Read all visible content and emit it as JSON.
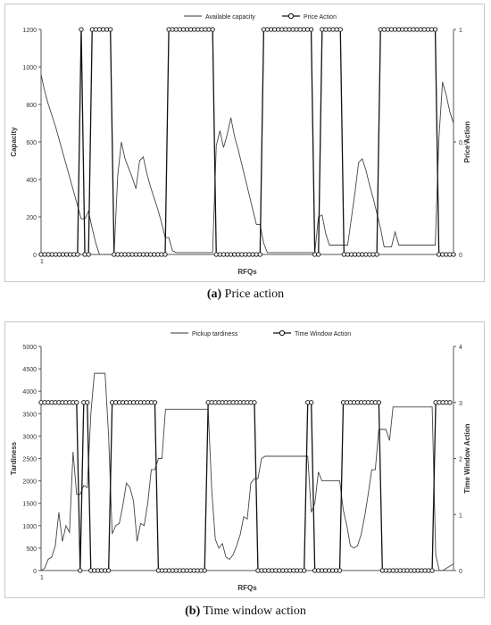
{
  "chart_data": [
    {
      "type": "line",
      "caption_letter": "(a)",
      "caption_text": "Price action",
      "xlabel": "RFQs",
      "x_first_tick": "1",
      "ylabel": "Capacity",
      "ylabel_right": "Price Action",
      "ylim": [
        0,
        1200
      ],
      "yticks": [
        "0",
        "200",
        "400",
        "600",
        "800",
        "1000",
        "1200"
      ],
      "ylim_right": [
        0,
        1
      ],
      "yticks_right": [
        "0",
        "0.5",
        "1"
      ],
      "legend_position": "top-center",
      "series": [
        {
          "name": "Available capacity",
          "axis": "left",
          "markers": false,
          "values": [
            960,
            870,
            800,
            740,
            680,
            610,
            540,
            470,
            400,
            330,
            260,
            190,
            190,
            230,
            140,
            60,
            0,
            0,
            0,
            0,
            0,
            420,
            600,
            510,
            460,
            410,
            350,
            500,
            520,
            430,
            360,
            300,
            240,
            170,
            90,
            90,
            20,
            10,
            10,
            10,
            10,
            10,
            10,
            10,
            10,
            10,
            10,
            10,
            580,
            660,
            570,
            640,
            730,
            630,
            560,
            480,
            400,
            320,
            240,
            160,
            160,
            60,
            10,
            10,
            10,
            10,
            10,
            10,
            10,
            10,
            10,
            10,
            10,
            10,
            10,
            10,
            200,
            210,
            110,
            50,
            50,
            50,
            50,
            50,
            50,
            190,
            330,
            490,
            510,
            450,
            370,
            300,
            220,
            140,
            40,
            40,
            40,
            120,
            50,
            50,
            50,
            50,
            50,
            50,
            50,
            50,
            50,
            50,
            50,
            620,
            920,
            850,
            760,
            700
          ]
        },
        {
          "name": "Price Action",
          "axis": "right",
          "markers": true,
          "values": [
            0,
            0,
            0,
            0,
            0,
            0,
            0,
            0,
            0,
            0,
            0,
            1,
            0,
            0,
            1,
            1,
            1,
            1,
            1,
            1,
            0,
            0,
            0,
            0,
            0,
            0,
            0,
            0,
            0,
            0,
            0,
            0,
            0,
            0,
            0,
            1,
            1,
            1,
            1,
            1,
            1,
            1,
            1,
            1,
            1,
            1,
            1,
            1,
            0,
            0,
            0,
            0,
            0,
            0,
            0,
            0,
            0,
            0,
            0,
            0,
            0,
            1,
            1,
            1,
            1,
            1,
            1,
            1,
            1,
            1,
            1,
            1,
            1,
            1,
            1,
            0,
            0,
            1,
            1,
            1,
            1,
            1,
            1,
            0,
            0,
            0,
            0,
            0,
            0,
            0,
            0,
            0,
            0,
            1,
            1,
            1,
            1,
            1,
            1,
            1,
            1,
            1,
            1,
            1,
            1,
            1,
            1,
            1,
            1,
            0,
            0,
            0,
            0,
            0
          ]
        }
      ]
    },
    {
      "type": "line",
      "caption_letter": "(b)",
      "caption_text": "Time window action",
      "xlabel": "RFQs",
      "x_first_tick": "1",
      "ylabel": "Tardiness",
      "ylabel_right": "Time Window Action",
      "ylim": [
        0,
        5000
      ],
      "yticks": [
        "0",
        "500",
        "1000",
        "1500",
        "2000",
        "2500",
        "3000",
        "3500",
        "4000",
        "4500",
        "5000"
      ],
      "ylim_right": [
        0,
        4
      ],
      "yticks_right": [
        "0",
        "1",
        "2",
        "3",
        "4"
      ],
      "legend_position": "top-center",
      "series": [
        {
          "name": "Pickup tardiness",
          "axis": "left",
          "markers": false,
          "values": [
            0,
            50,
            250,
            300,
            550,
            1300,
            650,
            1000,
            850,
            2650,
            1700,
            1700,
            1900,
            1850,
            3500,
            4400,
            4400,
            4400,
            4400,
            3000,
            820,
            1000,
            1050,
            1450,
            1950,
            1850,
            1550,
            650,
            1050,
            1000,
            1500,
            2250,
            2250,
            2500,
            2500,
            3600,
            3600,
            3600,
            3600,
            3600,
            3600,
            3600,
            3600,
            3600,
            3600,
            3600,
            3600,
            3600,
            1800,
            700,
            500,
            600,
            300,
            250,
            350,
            550,
            800,
            1200,
            1150,
            1950,
            2050,
            2050,
            2500,
            2550,
            2550,
            2550,
            2550,
            2550,
            2550,
            2550,
            2550,
            2550,
            2550,
            2550,
            2550,
            2550,
            1300,
            1500,
            2200,
            2000,
            2000,
            2000,
            2000,
            2000,
            2000,
            1350,
            1000,
            550,
            500,
            550,
            800,
            1200,
            1700,
            2250,
            2250,
            3150,
            3150,
            3150,
            2900,
            3650,
            3650,
            3650,
            3650,
            3650,
            3650,
            3650,
            3650,
            3650,
            3650,
            3650,
            3650,
            350,
            0,
            0,
            50,
            100,
            150
          ]
        },
        {
          "name": "Time Window Action",
          "axis": "right",
          "markers": true,
          "values": [
            3,
            3,
            3,
            3,
            3,
            3,
            3,
            3,
            3,
            3,
            3,
            0,
            3,
            3,
            0,
            0,
            0,
            0,
            0,
            0,
            3,
            3,
            3,
            3,
            3,
            3,
            3,
            3,
            3,
            3,
            3,
            3,
            3,
            0,
            0,
            0,
            0,
            0,
            0,
            0,
            0,
            0,
            0,
            0,
            0,
            0,
            0,
            3,
            3,
            3,
            3,
            3,
            3,
            3,
            3,
            3,
            3,
            3,
            3,
            3,
            3,
            0,
            0,
            0,
            0,
            0,
            0,
            0,
            0,
            0,
            0,
            0,
            0,
            0,
            0,
            3,
            3,
            0,
            0,
            0,
            0,
            0,
            0,
            0,
            0,
            3,
            3,
            3,
            3,
            3,
            3,
            3,
            3,
            3,
            3,
            3,
            0,
            0,
            0,
            0,
            0,
            0,
            0,
            0,
            0,
            0,
            0,
            0,
            0,
            0,
            0,
            3,
            3,
            3,
            3,
            3
          ]
        }
      ]
    }
  ]
}
